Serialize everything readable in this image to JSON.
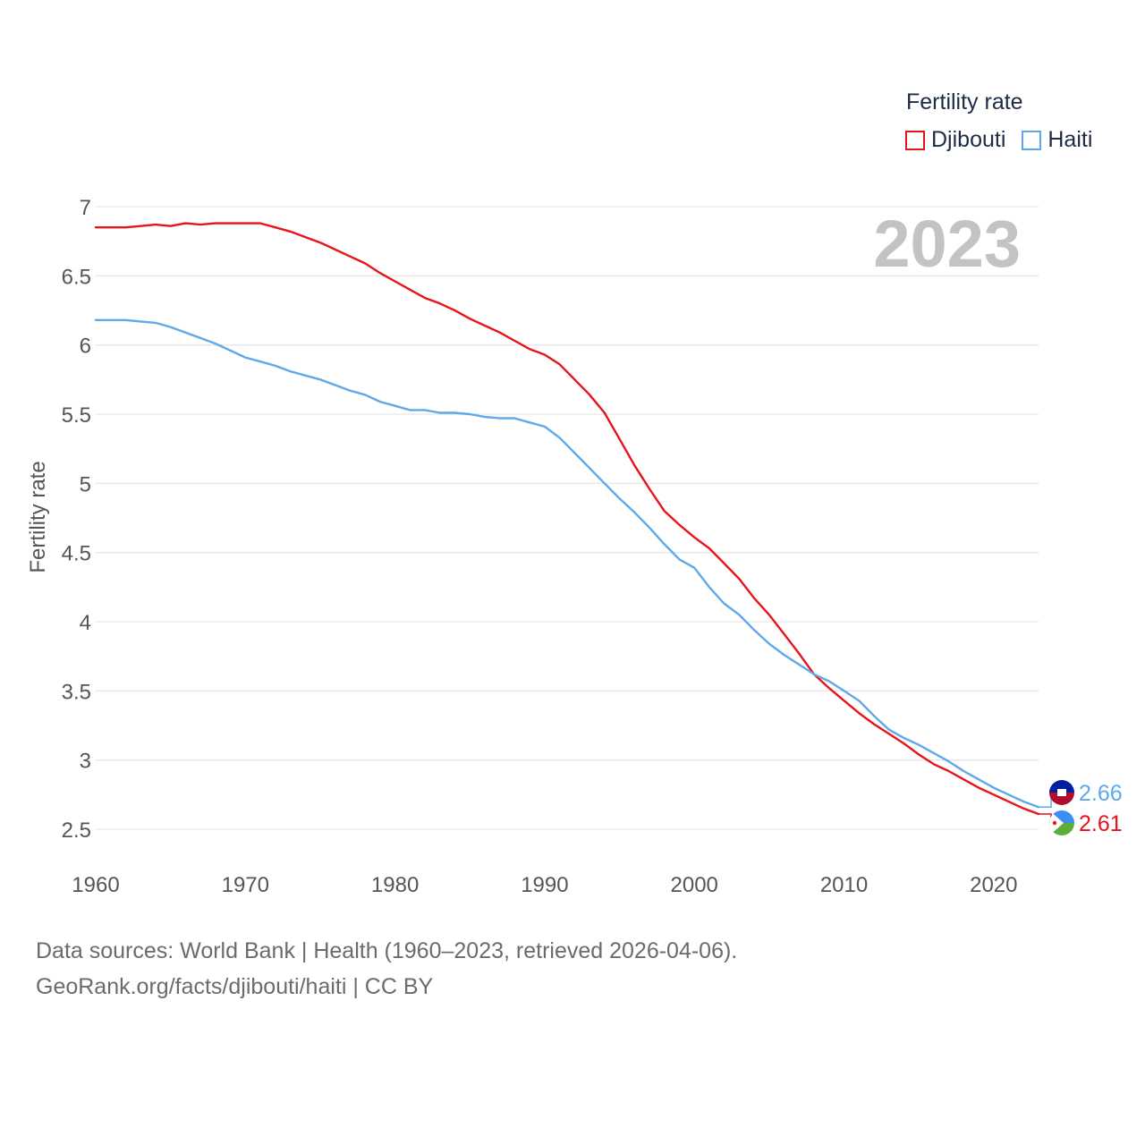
{
  "legend": {
    "title": "Fertility rate"
  },
  "footer": {
    "line1": "Data sources: World Bank | Health (1960–2023, retrieved 2026-04-06).",
    "line2": "GeoRank.org/facts/djibouti/haiti | CC BY"
  },
  "chart_data": {
    "type": "line",
    "title": "",
    "watermark": "2023",
    "xlabel": "",
    "ylabel": "Fertility rate",
    "xlim": [
      1960,
      2023
    ],
    "ylim": [
      2.5,
      7
    ],
    "x_ticks": [
      1960,
      1970,
      1980,
      1990,
      2000,
      2010,
      2020
    ],
    "y_ticks": [
      2.5,
      3,
      3.5,
      4,
      4.5,
      5,
      5.5,
      6,
      6.5,
      7
    ],
    "y_tick_labels": [
      "2.5",
      "3",
      "3.5",
      "4",
      "4.5",
      "5",
      "5.5",
      "6",
      "6.5",
      "7"
    ],
    "grid": true,
    "legend_position": "top-right",
    "series": [
      {
        "name": "Djibouti",
        "color": "#e8141a",
        "end_label": "2.61",
        "flag": "djibouti-flag",
        "x": [
          1960,
          1961,
          1962,
          1963,
          1964,
          1965,
          1966,
          1967,
          1968,
          1969,
          1970,
          1971,
          1972,
          1973,
          1974,
          1975,
          1976,
          1977,
          1978,
          1979,
          1980,
          1981,
          1982,
          1983,
          1984,
          1985,
          1986,
          1987,
          1988,
          1989,
          1990,
          1991,
          1992,
          1993,
          1994,
          1995,
          1996,
          1997,
          1998,
          1999,
          2000,
          2001,
          2002,
          2003,
          2004,
          2005,
          2006,
          2007,
          2008,
          2009,
          2010,
          2011,
          2012,
          2013,
          2014,
          2015,
          2016,
          2017,
          2018,
          2019,
          2020,
          2021,
          2022,
          2023
        ],
        "values": [
          6.85,
          6.85,
          6.85,
          6.86,
          6.87,
          6.86,
          6.88,
          6.87,
          6.88,
          6.88,
          6.88,
          6.88,
          6.85,
          6.82,
          6.78,
          6.74,
          6.69,
          6.64,
          6.59,
          6.52,
          6.46,
          6.4,
          6.34,
          6.3,
          6.25,
          6.19,
          6.14,
          6.09,
          6.03,
          5.97,
          5.93,
          5.86,
          5.75,
          5.64,
          5.51,
          5.32,
          5.13,
          4.96,
          4.8,
          4.7,
          4.61,
          4.53,
          4.42,
          4.31,
          4.17,
          4.05,
          3.91,
          3.77,
          3.62,
          3.52,
          3.43,
          3.34,
          3.26,
          3.19,
          3.12,
          3.04,
          2.97,
          2.92,
          2.86,
          2.8,
          2.75,
          2.7,
          2.65,
          2.61
        ]
      },
      {
        "name": "Haiti",
        "color": "#5ea8ec",
        "end_label": "2.66",
        "flag": "haiti-flag",
        "x": [
          1960,
          1961,
          1962,
          1963,
          1964,
          1965,
          1966,
          1967,
          1968,
          1969,
          1970,
          1971,
          1972,
          1973,
          1974,
          1975,
          1976,
          1977,
          1978,
          1979,
          1980,
          1981,
          1982,
          1983,
          1984,
          1985,
          1986,
          1987,
          1988,
          1989,
          1990,
          1991,
          1992,
          1993,
          1994,
          1995,
          1996,
          1997,
          1998,
          1999,
          2000,
          2001,
          2002,
          2003,
          2004,
          2005,
          2006,
          2007,
          2008,
          2009,
          2010,
          2011,
          2012,
          2013,
          2014,
          2015,
          2016,
          2017,
          2018,
          2019,
          2020,
          2021,
          2022,
          2023
        ],
        "values": [
          6.18,
          6.18,
          6.18,
          6.17,
          6.16,
          6.13,
          6.09,
          6.05,
          6.01,
          5.96,
          5.91,
          5.88,
          5.85,
          5.81,
          5.78,
          5.75,
          5.71,
          5.67,
          5.64,
          5.59,
          5.56,
          5.53,
          5.53,
          5.51,
          5.51,
          5.5,
          5.48,
          5.47,
          5.47,
          5.44,
          5.41,
          5.33,
          5.22,
          5.11,
          5.0,
          4.89,
          4.79,
          4.68,
          4.56,
          4.45,
          4.39,
          4.25,
          4.13,
          4.05,
          3.94,
          3.84,
          3.76,
          3.69,
          3.62,
          3.57,
          3.5,
          3.43,
          3.32,
          3.22,
          3.16,
          3.11,
          3.05,
          2.99,
          2.92,
          2.86,
          2.8,
          2.75,
          2.7,
          2.66
        ]
      }
    ]
  }
}
